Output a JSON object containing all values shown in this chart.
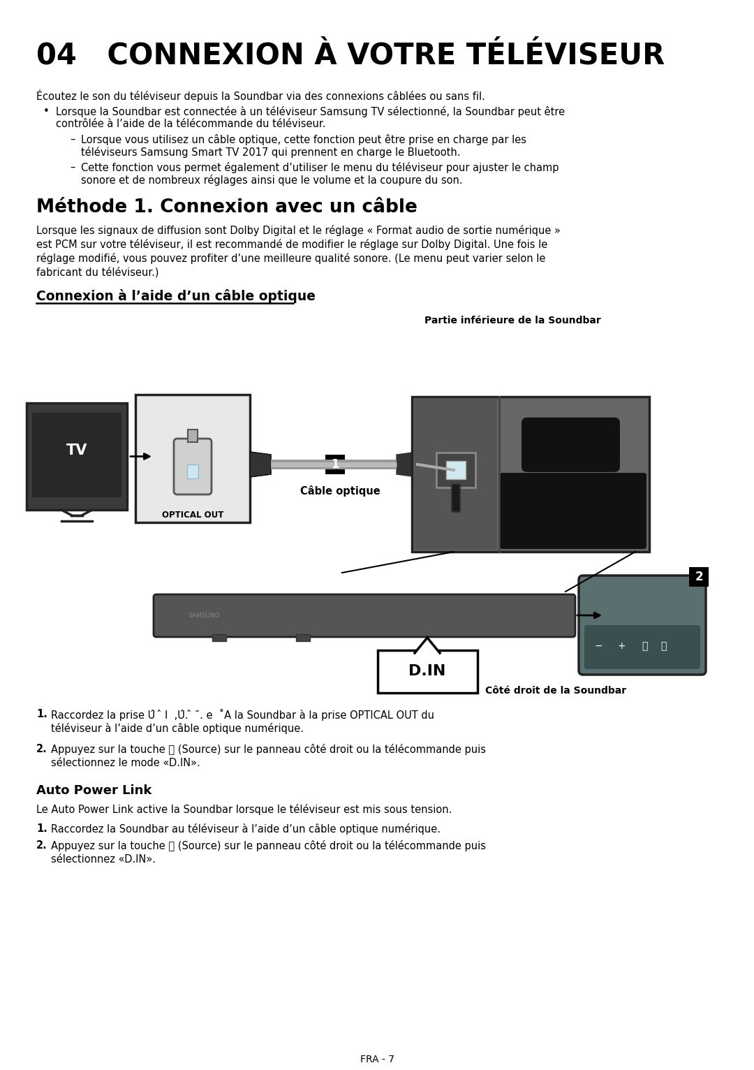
{
  "title": "04   CONNEXION À VOTRE TÉLÉVISEUR",
  "bg_color": "#ffffff",
  "text_color": "#000000",
  "intro_text": "Écoutez le son du téléviseur depuis la Soundbar via des connexions câblées ou sans fil.",
  "bullet1_line1": "Lorsque la Soundbar est connectée à un téléviseur Samsung TV sélectionné, la Soundbar peut être",
  "bullet1_line2": "contrôlée à l’aide de la télécommande du téléviseur.",
  "dash1_line1": "Lorsque vous utilisez un câble optique, cette fonction peut être prise en charge par les",
  "dash1_line2": "téléviseurs Samsung Smart TV 2017 qui prennent en charge le Bluetooth.",
  "dash2_line1": "Cette fonction vous permet également d’utiliser le menu du téléviseur pour ajuster le champ",
  "dash2_line2": "sonore et de nombreux réglages ainsi que le volume et la coupure du son.",
  "section_title": "Méthode 1. Connexion avec un câble",
  "section_body_line1": "Lorsque les signaux de diffusion sont Dolby Digital et le réglage « Format audio de sortie numérique »",
  "section_body_line2": "est PCM sur votre téléviseur, il est recommandé de modifier le réglage sur Dolby Digital. Une fois le",
  "section_body_line3": "réglage modifié, vous pouvez profiter d’une meilleure qualité sonore. (Le menu peut varier selon le",
  "section_body_line4": "fabricant du téléviseur.)",
  "subsection_title": "Connexion à l’aide d’un câble optique",
  "label_partie": "Partie inférieure de la Soundbar",
  "label_cable": "Câble optique",
  "label_cote": "Côté droit de la Soundbar",
  "label_tv": "TV",
  "label_optical": "OPTICAL OUT",
  "label_din": "D.IN",
  "step1_num": "1.",
  "step1_line1": "Raccordez la prise Û  ̂ I  ,Û. ̂ ˜. e  ˚A la Soundbar à la prise OPTICAL OUT du",
  "step1_line2": "téléviseur à l’aide d’un câble optique numérique.",
  "step2_num": "2.",
  "step2_line1": "Appuyez sur la touche ⧖ (Source) sur le panneau côté droit ou la télécommande puis",
  "step2_line2": "sélectionnez le mode «D.IN».",
  "auto_title": "Auto Power Link",
  "auto_body": "Le Auto Power Link active la Soundbar lorsque le téléviseur est mis sous tension.",
  "auto_step1": "Raccordez la Soundbar au téléviseur à l’aide d’un câble optique numérique.",
  "auto_step2_line1": "Appuyez sur la touche ⧖ (Source) sur le panneau côté droit ou la télécommande puis",
  "auto_step2_line2": "sélectionnez «D.IN».",
  "footer": "FRA - 7"
}
